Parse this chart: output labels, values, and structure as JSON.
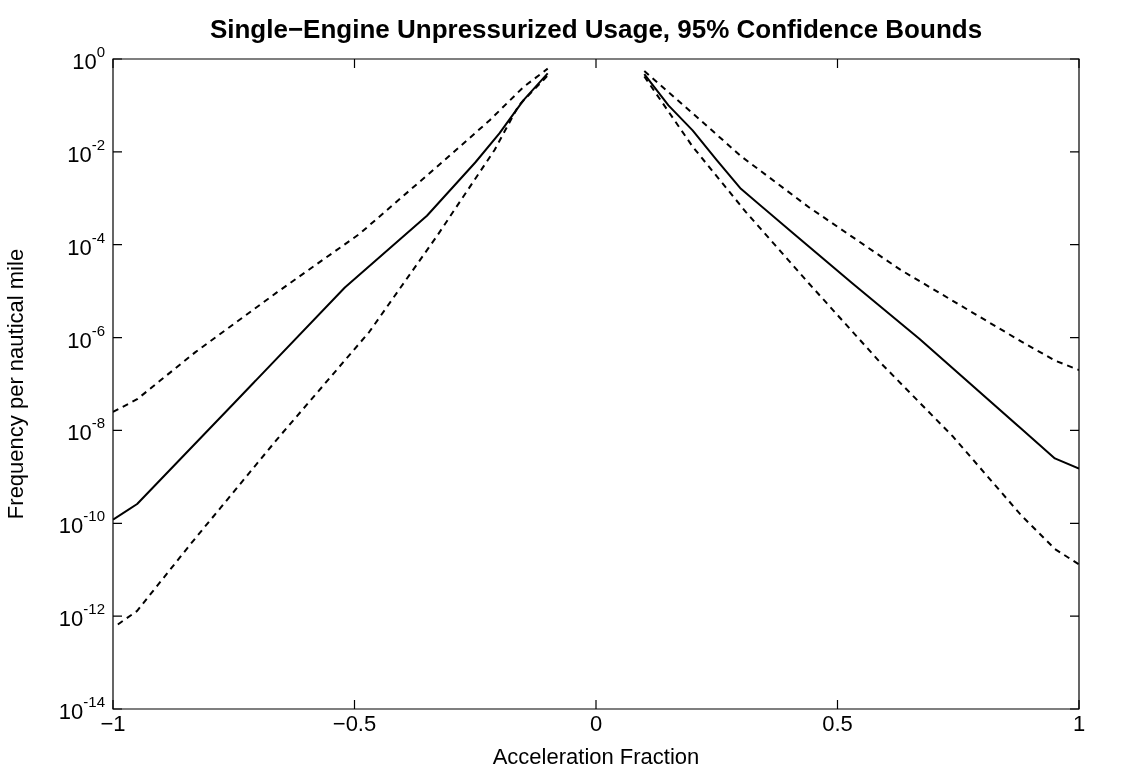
{
  "chart_data": {
    "type": "line",
    "title": "Single−Engine Unpressurized Usage, 95% Confidence Bounds",
    "xlabel": "Acceleration Fraction",
    "ylabel": "Frequency per nautical mile",
    "log": "y",
    "legend": false,
    "marker": "none",
    "xlim": [
      -1,
      1
    ],
    "xticks": [
      {
        "value": -1,
        "label": "−1"
      },
      {
        "value": -0.5,
        "label": "−0.5"
      },
      0,
      0.5,
      1
    ],
    "ylim": [
      1e-14,
      1
    ],
    "yticks": [
      {
        "value": 1e-14,
        "label": "10$^{-14}$"
      },
      {
        "value": 1e-12,
        "label": "10$^{-12}$"
      },
      {
        "value": 1e-10,
        "label": "10$^{-10}$"
      },
      {
        "value": 1e-08,
        "label": "10$^{-8}$"
      },
      {
        "value": 1e-06,
        "label": "10$^{-6}$"
      },
      {
        "value": 0.0001,
        "label": "10$^{-4}$"
      },
      {
        "value": 0.01,
        "label": "10$^{-2}$"
      },
      {
        "value": 1,
        "label": "10$^{0}$"
      }
    ],
    "series": [
      {
        "color": "#000000",
        "line_style": "solid",
        "x": [
          -1,
          -0.95,
          -0.75,
          -0.52,
          -0.35,
          -0.25,
          -0.2,
          -0.15,
          -0.1,
          0,
          0.1,
          0.15,
          0.2,
          0.25,
          0.3,
          0.41,
          0.53,
          0.67,
          0.88,
          0.95,
          1
        ],
        "values": [
          1.2e-10,
          2.6e-10,
          3.8e-08,
          1.2e-05,
          0.00042,
          0.0059,
          0.025,
          0.13,
          0.49,
          null,
          0.47,
          0.1,
          0.029,
          0.0066,
          0.0016,
          0.00017,
          1.5e-05,
          9.3e-07,
          1.1e-08,
          2.5e-09,
          1.5e-09
        ]
      },
      {
        "color": "#000000",
        "line_style": "dashed",
        "x": [
          -1,
          -0.95,
          -0.83,
          -0.66,
          -0.49,
          -0.33,
          -0.22,
          -0.15,
          -0.1,
          0,
          0.1,
          0.2,
          0.3,
          0.44,
          0.63,
          0.88,
          0.95,
          1
        ],
        "values": [
          2.5e-08,
          4.7e-08,
          4.8e-07,
          9.5e-06,
          0.00017,
          0.0047,
          0.048,
          0.25,
          0.62,
          null,
          0.55,
          0.068,
          0.0081,
          0.00065,
          2.9e-05,
          8.3e-07,
          3.2e-07,
          2e-07
        ]
      },
      {
        "color": "#000000",
        "line_style": "dashed",
        "x": [
          -0.99,
          -0.95,
          -0.84,
          -0.66,
          -0.47,
          -0.33,
          -0.21,
          -0.16,
          -0.1,
          0,
          0.1,
          0.2,
          0.31,
          0.44,
          0.59,
          0.74,
          0.88,
          0.95,
          1
        ],
        "values": [
          6.6e-13,
          1.3e-12,
          3.5e-11,
          6.5e-09,
          1.3e-06,
          0.00015,
          0.011,
          0.1,
          0.44,
          null,
          0.42,
          0.013,
          0.00051,
          1.5e-05,
          2.8e-07,
          7.2e-09,
          1.5e-10,
          2.8e-11,
          1.3e-11
        ]
      }
    ]
  }
}
